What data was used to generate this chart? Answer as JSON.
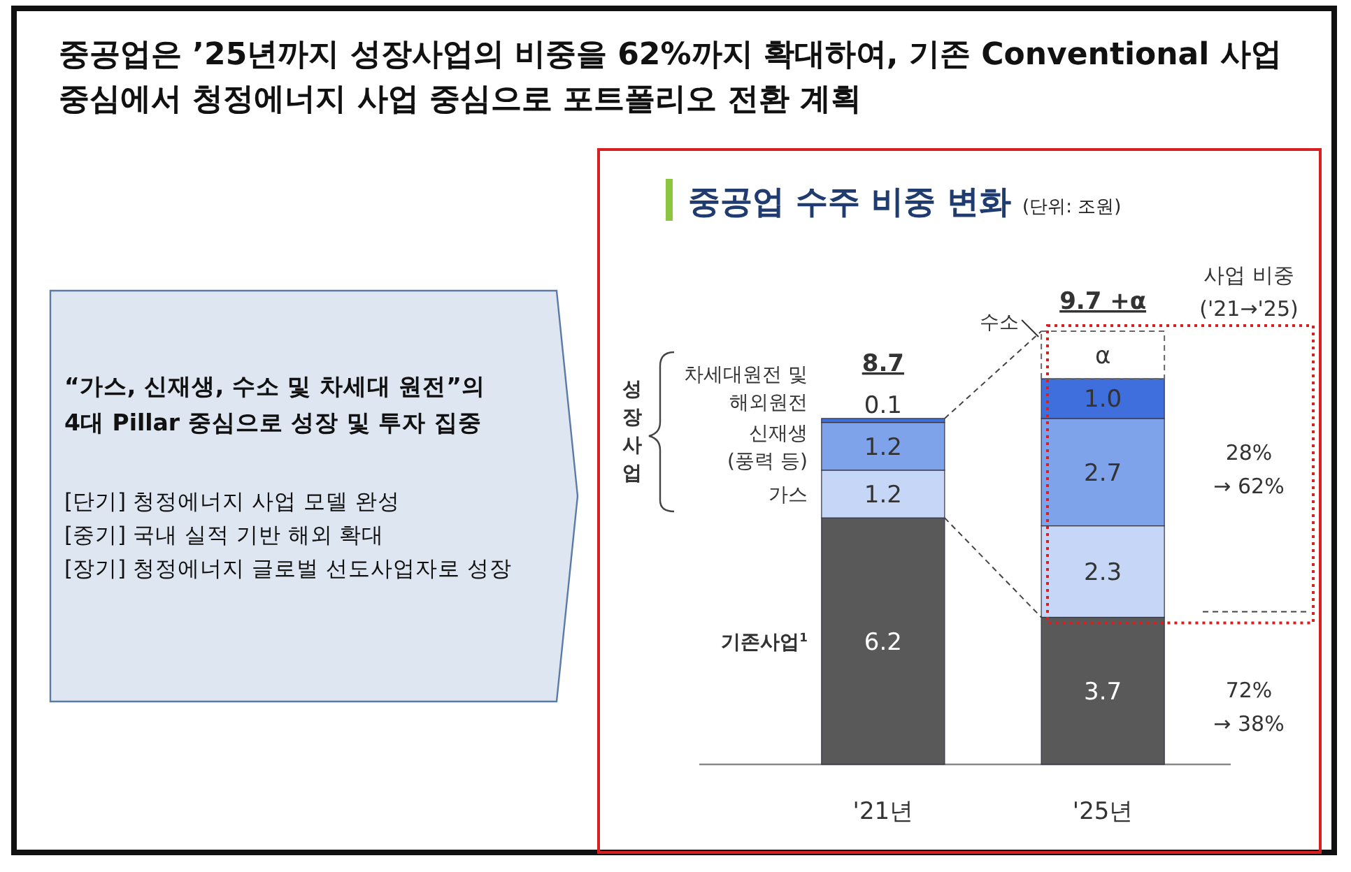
{
  "chart_data": [
    {
      "type": "other",
      "title": "중공업은 ’25년까지 성장사업의 비중을 62%까지 확대하여, 기존 Conventional 사업\n중심에서 청정에너지 사업 중심으로 포트폴리오 전환 계획",
      "annotations": [
        "“가스, 신재생, 수소 및 차세대 원전”의",
        "4대 Pillar 중심으로 성장 및 투자 집중",
        "[단기] 청정에너지 사업 모델 완성",
        "[중기] 국내 실적 기반 해외 확대",
        "[장기] 청정에너지 글로벌 선도사업자로 성장"
      ]
    },
    {
      "type": "bar",
      "stacked": true,
      "title": "중공업 수주 비중 변화",
      "subtitle": "(단위: 조원)",
      "categories": [
        "'21년",
        "'25년"
      ],
      "series": [
        {
          "name": "기존사업$^{1}$",
          "color": "#595959",
          "values": [
            6.2,
            3.7
          ],
          "value_labels": [
            "6.2",
            "3.7"
          ]
        },
        {
          "name": "가스",
          "color": "#c6d6f6",
          "values": [
            1.2,
            2.3
          ],
          "value_labels": [
            "1.2",
            "2.3"
          ]
        },
        {
          "name": "신재생\n(풍력 등)",
          "color": "#7fa3ea",
          "values": [
            1.2,
            2.7
          ],
          "value_labels": [
            "1.2",
            "2.7"
          ]
        },
        {
          "name": "차세대원전 및\n해외원전",
          "color": "#3e6fdd",
          "values": [
            0.1,
            1.0
          ],
          "value_labels": [
            "0.1",
            "1.0"
          ]
        }
      ],
      "totals": [
        "8.7",
        "9.7 +α"
      ],
      "annotations": [
        "성장\n사업",
        "사업 비중\n('21→'25)",
        "28%\n→ 62%",
        "72%\n→ 38%",
        "α",
        "수소"
      ]
    }
  ]
}
